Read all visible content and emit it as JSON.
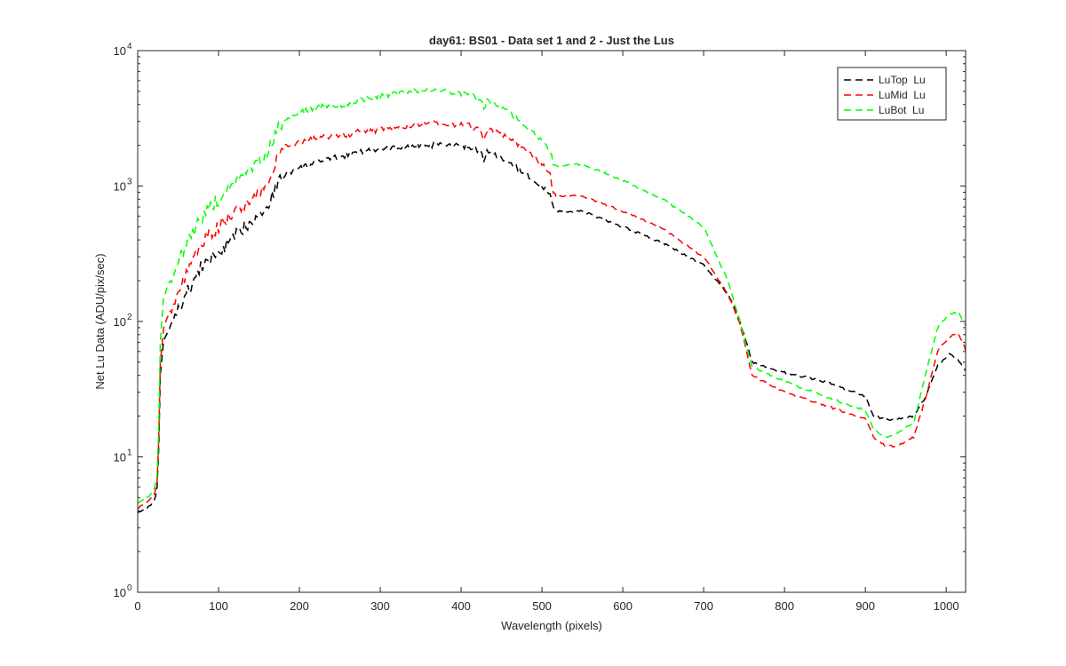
{
  "chart_data": {
    "type": "line",
    "title": "day61: BS01 - Data set 1 and 2 - Just the Lus",
    "xlabel": "Wavelength (pixels)",
    "ylabel": "Net Lu Data (ADU/pix/sec)",
    "xlim": [
      0,
      1024
    ],
    "ylim": [
      1,
      10000
    ],
    "yscale": "log",
    "x_ticks": [
      0,
      100,
      200,
      300,
      400,
      500,
      600,
      700,
      800,
      900,
      1000
    ],
    "x_tick_labels": [
      "0",
      "100",
      "200",
      "300",
      "400",
      "500",
      "600",
      "700",
      "800",
      "900",
      "1000"
    ],
    "y_ticks": [
      1,
      10,
      100,
      1000,
      10000
    ],
    "y_tick_labels": [
      {
        "base": "10",
        "exp": "0"
      },
      {
        "base": "10",
        "exp": "1"
      },
      {
        "base": "10",
        "exp": "2"
      },
      {
        "base": "10",
        "exp": "3"
      },
      {
        "base": "10",
        "exp": "4"
      }
    ],
    "grid": false,
    "legend_position": "top-right",
    "line_style": "dashed",
    "series": [
      {
        "name": "LuTop  Lu",
        "color": "#000000",
        "x": [
          0,
          10,
          20,
          25,
          28,
          32,
          40,
          50,
          60,
          70,
          80,
          100,
          120,
          140,
          160,
          175,
          185,
          200,
          230,
          260,
          270,
          300,
          350,
          380,
          410,
          425,
          428,
          432,
          460,
          500,
          510,
          515,
          550,
          600,
          650,
          700,
          730,
          745,
          760,
          800,
          850,
          900,
          910,
          925,
          940,
          960,
          975,
          990,
          1005,
          1015,
          1024
        ],
        "y": [
          3.9,
          4.1,
          4.6,
          6.2,
          40,
          72,
          90,
          120,
          160,
          205,
          260,
          320,
          420,
          560,
          700,
          1100,
          1250,
          1350,
          1550,
          1700,
          1800,
          1850,
          2000,
          2000,
          1950,
          1800,
          1450,
          1800,
          1500,
          1000,
          850,
          650,
          650,
          500,
          380,
          260,
          160,
          100,
          50,
          42,
          36,
          28,
          20,
          19,
          19,
          20,
          28,
          48,
          58,
          52,
          44
        ]
      },
      {
        "name": "LuMid  Lu",
        "color": "#ff0000",
        "x": [
          0,
          10,
          20,
          25,
          28,
          32,
          40,
          50,
          60,
          70,
          80,
          100,
          120,
          140,
          160,
          175,
          185,
          200,
          230,
          260,
          270,
          300,
          350,
          380,
          410,
          425,
          428,
          432,
          460,
          500,
          510,
          515,
          550,
          600,
          650,
          700,
          730,
          745,
          760,
          800,
          850,
          900,
          910,
          925,
          940,
          960,
          975,
          990,
          1005,
          1015,
          1024
        ],
        "y": [
          4.2,
          4.5,
          5.1,
          7,
          50,
          90,
          120,
          160,
          220,
          300,
          380,
          500,
          650,
          800,
          1000,
          1800,
          2000,
          2100,
          2300,
          2400,
          2500,
          2600,
          2900,
          2900,
          2800,
          2600,
          2100,
          2600,
          2300,
          1450,
          1200,
          850,
          850,
          650,
          480,
          300,
          160,
          95,
          40,
          30,
          24,
          19,
          14,
          12,
          12,
          14,
          28,
          62,
          78,
          82,
          62
        ]
      },
      {
        "name": "LuBot  Lu",
        "color": "#00ff00",
        "x": [
          0,
          10,
          20,
          25,
          28,
          32,
          40,
          50,
          60,
          70,
          80,
          100,
          120,
          140,
          160,
          175,
          185,
          200,
          230,
          260,
          270,
          300,
          350,
          380,
          410,
          425,
          428,
          432,
          460,
          500,
          510,
          515,
          550,
          600,
          650,
          700,
          730,
          745,
          760,
          800,
          850,
          900,
          910,
          925,
          940,
          960,
          975,
          990,
          1005,
          1015,
          1024
        ],
        "y": [
          4.6,
          4.9,
          5.6,
          7.8,
          70,
          150,
          200,
          280,
          360,
          480,
          600,
          800,
          1050,
          1300,
          1700,
          2800,
          3100,
          3500,
          3900,
          4000,
          4200,
          4600,
          5100,
          5000,
          4800,
          4300,
          3600,
          4300,
          3500,
          2200,
          1800,
          1400,
          1450,
          1100,
          800,
          500,
          200,
          100,
          46,
          36,
          28,
          22,
          16,
          14,
          15,
          18,
          42,
          92,
          115,
          118,
          92
        ]
      }
    ]
  }
}
